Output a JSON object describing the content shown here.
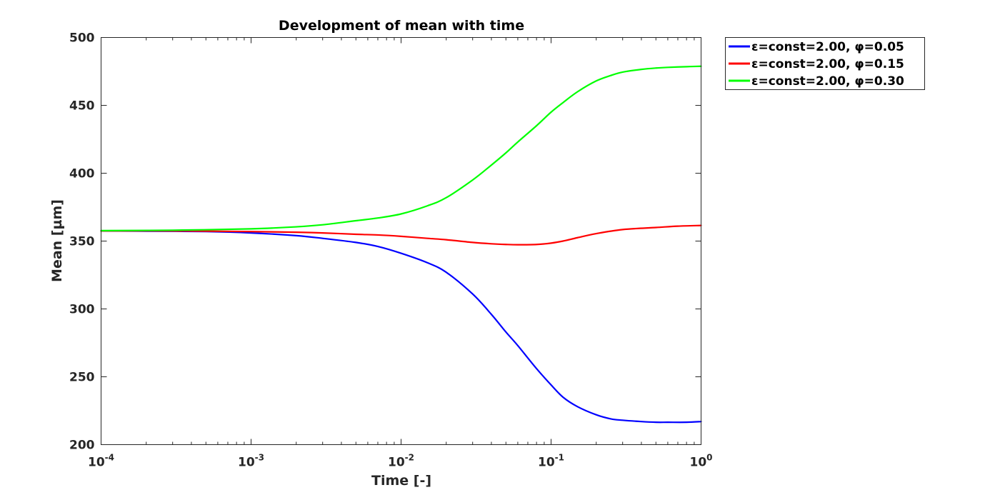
{
  "chart_data": {
    "type": "line",
    "title": "Development of mean with time",
    "xlabel": "Time [-]",
    "ylabel": "Mean [µm]",
    "xscale": "log",
    "xlim": [
      0.0001,
      1
    ],
    "ylim": [
      200,
      500
    ],
    "x_ticks": [
      {
        "value": 0.0001,
        "base": "10",
        "exp": "-4"
      },
      {
        "value": 0.001,
        "base": "10",
        "exp": "-3"
      },
      {
        "value": 0.01,
        "base": "10",
        "exp": "-2"
      },
      {
        "value": 0.1,
        "base": "10",
        "exp": "-1"
      },
      {
        "value": 1,
        "base": "10",
        "exp": "0"
      }
    ],
    "y_ticks": [
      200,
      250,
      300,
      350,
      400,
      450,
      500
    ],
    "legend_position": "outside-top-right",
    "series": [
      {
        "name": "ε=const=2.00, φ=0.05",
        "color": "#0000ff",
        "x": [
          0.0001,
          0.0002,
          0.0005,
          0.001,
          0.002,
          0.003,
          0.005,
          0.007,
          0.01,
          0.015,
          0.02,
          0.03,
          0.04,
          0.05,
          0.06,
          0.08,
          0.1,
          0.12,
          0.15,
          0.2,
          0.25,
          0.3,
          0.4,
          0.5,
          0.6,
          0.8,
          1
        ],
        "y": [
          357.5,
          357.3,
          357,
          356,
          354,
          352,
          349,
          346,
          341,
          334,
          327,
          311,
          296,
          283,
          273,
          256,
          244,
          235,
          228,
          222,
          219,
          218,
          217,
          216.5,
          216.5,
          216.5,
          217
        ]
      },
      {
        "name": "ε=const=2.00, φ=0.15",
        "color": "#ff0000",
        "x": [
          0.0001,
          0.0003,
          0.001,
          0.002,
          0.003,
          0.005,
          0.007,
          0.01,
          0.015,
          0.02,
          0.03,
          0.04,
          0.05,
          0.06,
          0.08,
          0.1,
          0.12,
          0.15,
          0.2,
          0.3,
          0.5,
          0.7,
          1
        ],
        "y": [
          357.5,
          357.5,
          357,
          356.5,
          356,
          355,
          354.5,
          353.5,
          352,
          351,
          349,
          348,
          347.5,
          347.3,
          347.5,
          348.5,
          350,
          352.5,
          355.5,
          358.5,
          360,
          361,
          361.5
        ]
      },
      {
        "name": "ε=const=2.00, φ=0.30",
        "color": "#00ff00",
        "x": [
          0.0001,
          0.0003,
          0.001,
          0.002,
          0.003,
          0.005,
          0.007,
          0.01,
          0.015,
          0.02,
          0.03,
          0.04,
          0.05,
          0.06,
          0.08,
          0.1,
          0.12,
          0.15,
          0.2,
          0.25,
          0.3,
          0.4,
          0.5,
          0.6,
          0.8,
          1
        ],
        "y": [
          357.7,
          358,
          359,
          360.5,
          362,
          365,
          367,
          370,
          376,
          382,
          395,
          406,
          415,
          423,
          435,
          445,
          452,
          460,
          468,
          472,
          474.5,
          476.5,
          477.5,
          478,
          478.5,
          478.8
        ]
      }
    ]
  }
}
